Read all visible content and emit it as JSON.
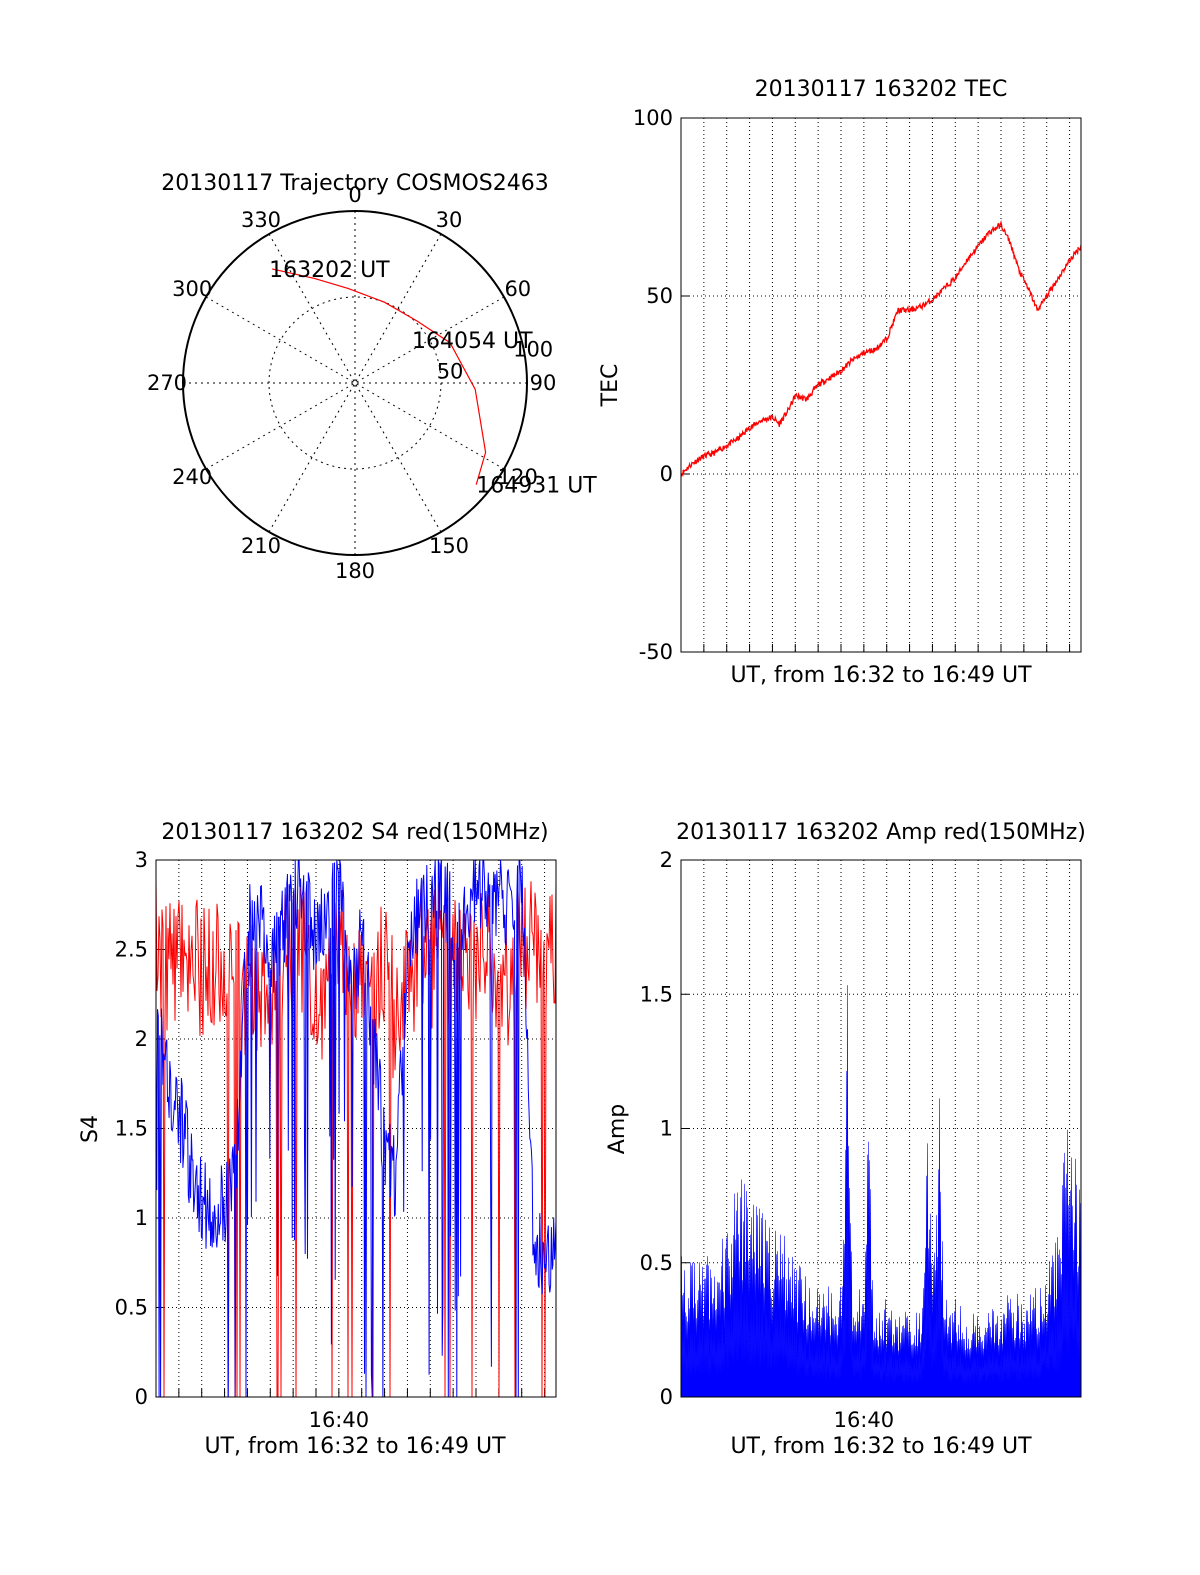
{
  "colors": {
    "primary": "#ff0000",
    "secondary": "#0000ff",
    "axis": "#000000",
    "grid": "#000000"
  },
  "chart_data": [
    {
      "type": "polar",
      "title": "20130117 Trajectory COSMOS2463",
      "angle_labels": [
        "0",
        "30",
        "60",
        "90",
        "120",
        "150",
        "180",
        "210",
        "240",
        "270",
        "300",
        "330"
      ],
      "radius_labels": [
        "50",
        "100"
      ],
      "r_max": 100,
      "grid": true,
      "trajectory": {
        "points": [
          {
            "azimuth": 324,
            "r": 82
          },
          {
            "azimuth": 339,
            "r": 65
          },
          {
            "azimuth": 356,
            "r": 55
          },
          {
            "azimuth": 20,
            "r": 50
          },
          {
            "azimuth": 45,
            "r": 51
          },
          {
            "azimuth": 67,
            "r": 60
          },
          {
            "azimuth": 93,
            "r": 70
          },
          {
            "azimuth": 118,
            "r": 86
          },
          {
            "azimuth": 130,
            "r": 92
          }
        ],
        "start_label": "163202 UT",
        "mid_label": "164054 UT",
        "end_label": "164931 UT"
      }
    },
    {
      "type": "line",
      "title": "20130117 163202 TEC",
      "ylabel": "TEC",
      "xlabel": "UT, from 16:32 to 16:49 UT",
      "ylim": [
        -50,
        100
      ],
      "yticks": [
        "-50",
        "0",
        "50",
        "100"
      ],
      "xlim_min": [
        0,
        17.5
      ],
      "grid": true,
      "series": [
        {
          "color": "#ff0000",
          "x": [
            0,
            0.5,
            1.0,
            1.5,
            2.0,
            2.5,
            3.0,
            3.5,
            4.0,
            4.3,
            4.7,
            5.0,
            5.5,
            6.0,
            6.5,
            7.0,
            7.5,
            8.0,
            8.5,
            9.0,
            9.5,
            10.0,
            10.5,
            11.0,
            11.5,
            12.0,
            12.5,
            13.0,
            13.5,
            14.0,
            14.4,
            14.8,
            15.2,
            15.6,
            16.0,
            16.5,
            17.0,
            17.5
          ],
          "y": [
            0,
            3,
            5,
            6,
            8,
            10,
            13,
            15,
            16,
            14,
            18,
            22,
            21,
            25,
            27,
            29,
            32,
            34,
            35,
            38,
            46,
            46,
            47,
            49,
            52,
            55,
            60,
            64,
            68,
            70,
            65,
            57,
            52,
            46,
            50,
            55,
            60,
            64
          ]
        }
      ]
    },
    {
      "type": "line",
      "title": "20130117 163202 S4 red(150MHz)",
      "ylabel": "S4",
      "xlabel": "UT, from 16:32 to 16:49 UT",
      "ylim": [
        0,
        3
      ],
      "yticks": [
        "0",
        "0.5",
        "1",
        "1.5",
        "2",
        "2.5",
        "3"
      ],
      "xtick_label": "16:40",
      "xtick_at_min": 8,
      "xlim_min": [
        0,
        17.5
      ],
      "grid": true,
      "series": [
        {
          "color": "#0000ff",
          "x": [
            0,
            0.5,
            1.0,
            1.5,
            2.0,
            2.5,
            3.0,
            3.5,
            4.0,
            4.5,
            5.0,
            5.5,
            6.0,
            6.5,
            7.0,
            7.5,
            8.0,
            8.5,
            9.0,
            9.5,
            10.0,
            10.5,
            11.0,
            11.5,
            12.0,
            12.5,
            13.0,
            13.5,
            14.0,
            14.5,
            15.0,
            15.5,
            16.0,
            16.5,
            17.0,
            17.5
          ],
          "y": [
            2.2,
            1.8,
            1.6,
            1.3,
            1.1,
            1.0,
            1.1,
            1.3,
            2.6,
            2.7,
            2.4,
            2.6,
            2.8,
            2.9,
            2.5,
            2.8,
            2.9,
            2.2,
            2.6,
            2.0,
            1.4,
            1.2,
            2.5,
            2.7,
            2.8,
            2.9,
            2.6,
            2.7,
            2.9,
            2.8,
            2.8,
            2.7,
            2.9,
            0.9,
            0.8,
            0.8
          ]
        },
        {
          "color": "#ff0000",
          "x": [
            0,
            0.5,
            1.0,
            1.5,
            2.0,
            2.5,
            3.0,
            3.5,
            4.0,
            4.5,
            5.0,
            5.5,
            6.0,
            6.5,
            7.0,
            7.5,
            8.0,
            8.5,
            9.0,
            9.5,
            10.0,
            10.5,
            11.0,
            11.5,
            12.0,
            12.5,
            13.0,
            13.5,
            14.0,
            14.5,
            15.0,
            15.5,
            16.0,
            16.5,
            17.0,
            17.5
          ],
          "y": [
            2.9,
            2.8,
            2.9,
            2.9,
            2.8,
            2.7,
            2.9,
            2.8,
            2.6,
            2.7,
            2.5,
            2.8,
            2.9,
            2.9,
            2.5,
            2.8,
            2.9,
            2.9,
            2.6,
            2.7,
            2.8,
            2.5,
            2.7,
            2.9,
            2.8,
            2.9,
            2.8,
            2.7,
            2.9,
            2.9,
            2.8,
            2.7,
            2.9,
            2.9,
            2.8,
            2.9
          ]
        }
      ]
    },
    {
      "type": "line",
      "title": "20130117 163202 Amp red(150MHz)",
      "ylabel": "Amp",
      "xlabel": "UT, from 16:32 to 16:49 UT",
      "ylim": [
        0,
        2
      ],
      "yticks": [
        "0",
        "0.5",
        "1",
        "1.5",
        "2"
      ],
      "xtick_label": "16:40",
      "xtick_at_min": 8,
      "xlim_min": [
        0,
        17.5
      ],
      "grid": true,
      "series": [
        {
          "color": "#0000ff",
          "x": [
            0,
            0.5,
            1.0,
            1.5,
            2.0,
            2.5,
            3.0,
            3.5,
            4.0,
            4.5,
            5.0,
            5.5,
            6.0,
            6.5,
            7.0,
            7.3,
            7.5,
            7.7,
            8.0,
            8.2,
            8.4,
            8.6,
            9.0,
            9.5,
            10.0,
            10.5,
            10.8,
            11.0,
            11.3,
            11.5,
            12.0,
            12.5,
            13.0,
            13.5,
            14.0,
            14.5,
            15.0,
            15.5,
            16.0,
            16.5,
            17.0,
            17.5
          ],
          "y": [
            0.55,
            0.48,
            0.5,
            0.52,
            0.6,
            0.8,
            0.75,
            0.7,
            0.6,
            0.6,
            0.5,
            0.45,
            0.42,
            0.4,
            0.4,
            1.55,
            0.4,
            0.38,
            0.4,
            1.2,
            0.35,
            0.33,
            0.35,
            0.3,
            0.35,
            0.3,
            1.05,
            0.4,
            1.13,
            0.35,
            0.35,
            0.3,
            0.32,
            0.3,
            0.35,
            0.38,
            0.35,
            0.4,
            0.5,
            0.6,
            1.1,
            0.7
          ]
        }
      ]
    }
  ]
}
